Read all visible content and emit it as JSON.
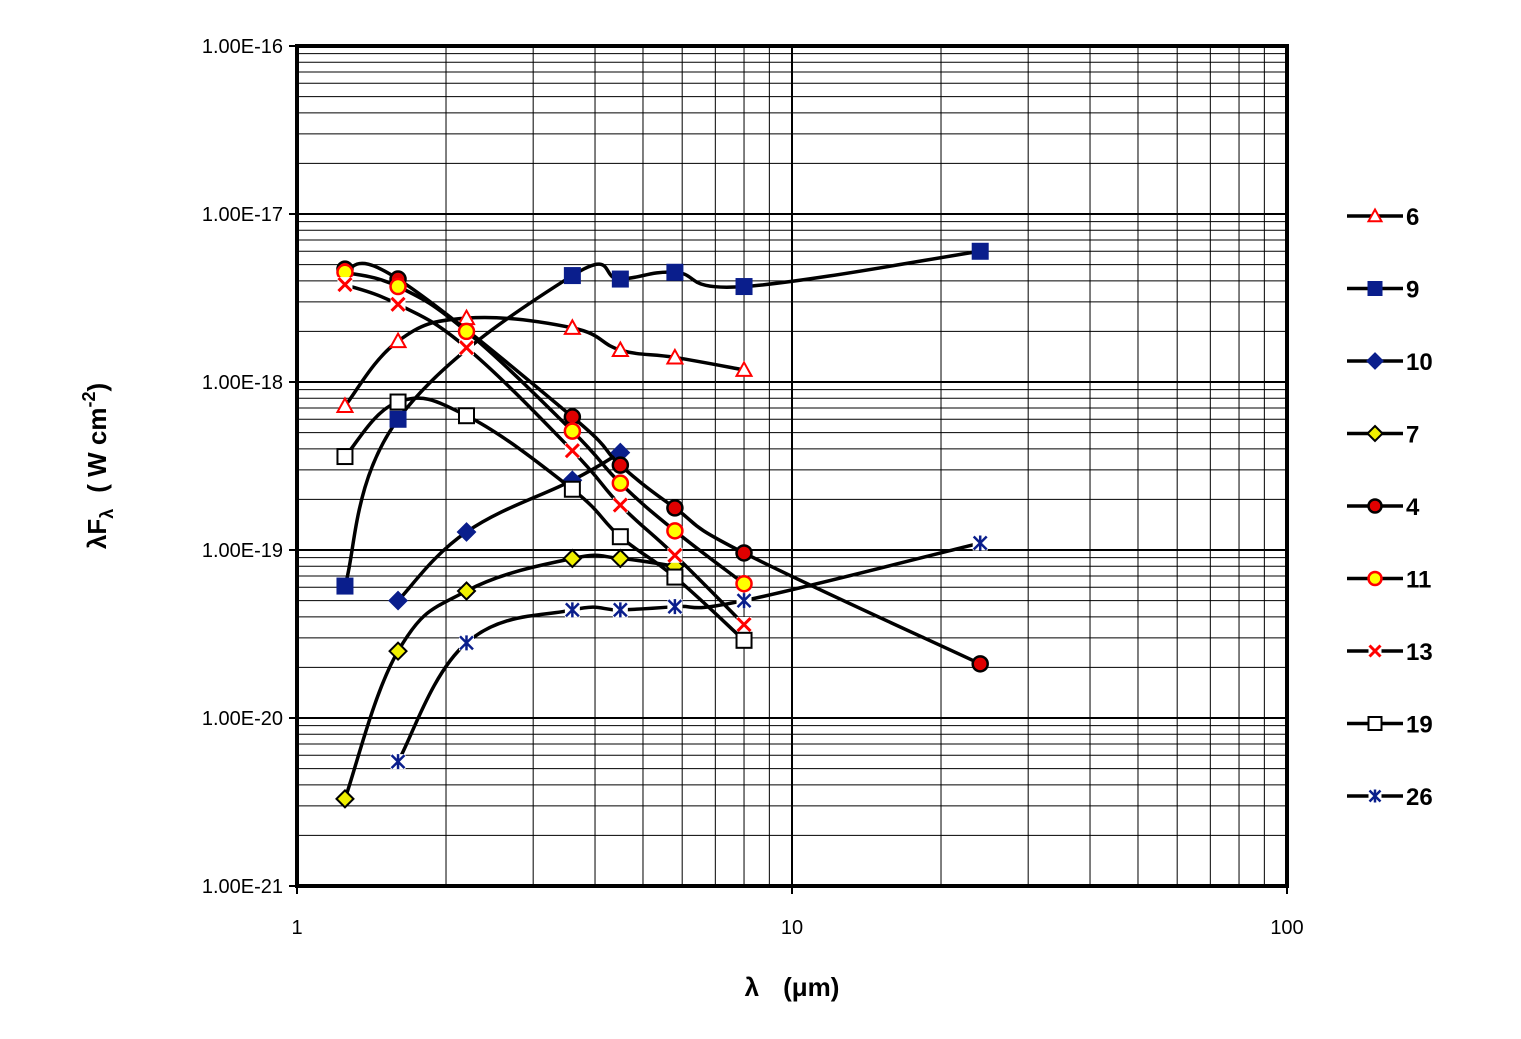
{
  "chart_data": {
    "type": "scatter",
    "x_scale": "log",
    "y_scale": "log",
    "xlim": [
      1,
      100
    ],
    "ylim": [
      1e-21,
      1e-16
    ],
    "grid": true,
    "legend_position": "right",
    "xlabel": {
      "main": "λ",
      "unit": "(μm)"
    },
    "ylabel": {
      "main": "λF",
      "sub": "λ",
      "unit_pre": "( W cm",
      "sup": "-2",
      "unit_post": ")"
    },
    "x_tick_labels": [
      {
        "value": 1,
        "label": "1"
      },
      {
        "value": 10,
        "label": "10"
      },
      {
        "value": 100,
        "label": "100"
      }
    ],
    "y_tick_labels": [
      {
        "value": 1e-16,
        "label": "1.00E-16"
      },
      {
        "value": 1e-17,
        "label": "1.00E-17"
      },
      {
        "value": 1e-18,
        "label": "1.00E-18"
      },
      {
        "value": 1e-19,
        "label": "1.00E-19"
      },
      {
        "value": 1e-20,
        "label": "1.00E-20"
      },
      {
        "value": 1e-21,
        "label": "1.00E-21"
      }
    ],
    "series": [
      {
        "name": "6",
        "marker": "triangle",
        "fill": "#ffffff",
        "stroke": "#ff0000",
        "x": [
          1.25,
          1.6,
          2.2,
          3.6,
          4.5,
          5.8,
          8.0
        ],
        "y": [
          7.2e-19,
          1.75e-18,
          2.4e-18,
          2.1e-18,
          1.55e-18,
          1.4e-18,
          1.18e-18
        ]
      },
      {
        "name": "9",
        "marker": "square",
        "fill": "#0a1e8c",
        "stroke": "#0a1e8c",
        "x": [
          1.25,
          1.6,
          3.6,
          4.5,
          5.8,
          8.0,
          24
        ],
        "y": [
          6.1e-20,
          6e-19,
          4.3e-18,
          4.1e-18,
          4.5e-18,
          3.7e-18,
          6e-18
        ]
      },
      {
        "name": "10",
        "marker": "diamond",
        "fill": "#0a1e8c",
        "stroke": "#0a1e8c",
        "x": [
          1.6,
          2.2,
          3.6,
          4.5
        ],
        "y": [
          5e-20,
          1.28e-19,
          2.6e-19,
          3.8e-19
        ]
      },
      {
        "name": "7",
        "marker": "diamond",
        "fill": "#f0f000",
        "stroke": "#000000",
        "x": [
          1.25,
          1.6,
          2.2,
          3.6,
          4.5,
          5.8
        ],
        "y": [
          3.3e-21,
          2.5e-20,
          5.7e-20,
          8.9e-20,
          8.9e-20,
          8e-20
        ]
      },
      {
        "name": "4",
        "marker": "circle",
        "fill": "#e00000",
        "stroke": "#000000",
        "x": [
          1.25,
          1.6,
          3.6,
          4.5,
          5.8,
          8.0,
          24
        ],
        "y": [
          4.7e-18,
          4.1e-18,
          6.2e-19,
          3.2e-19,
          1.78e-19,
          9.6e-20,
          2.1e-20
        ]
      },
      {
        "name": "11",
        "marker": "circle",
        "fill": "#ffff00",
        "stroke": "#ff0000",
        "x": [
          1.25,
          1.6,
          2.2,
          3.6,
          4.5,
          5.8,
          8.0
        ],
        "y": [
          4.5e-18,
          3.7e-18,
          2e-18,
          5.1e-19,
          2.5e-19,
          1.3e-19,
          6.3e-20
        ]
      },
      {
        "name": "13",
        "marker": "x",
        "fill": "#ffffff",
        "stroke": "#ff0000",
        "x": [
          1.25,
          1.6,
          2.2,
          3.6,
          4.5,
          5.8,
          8.0
        ],
        "y": [
          3.8e-18,
          2.9e-18,
          1.6e-18,
          3.9e-19,
          1.85e-19,
          9.3e-20,
          3.6e-20
        ]
      },
      {
        "name": "19",
        "marker": "square",
        "fill": "#ffffff",
        "stroke": "#000000",
        "x": [
          1.25,
          1.6,
          2.2,
          3.6,
          4.5,
          5.8,
          8.0
        ],
        "y": [
          3.6e-19,
          7.6e-19,
          6.3e-19,
          2.3e-19,
          1.2e-19,
          6.9e-20,
          2.9e-20
        ]
      },
      {
        "name": "26",
        "marker": "star",
        "fill": "#ffffff",
        "stroke": "#0a1e8c",
        "x": [
          1.6,
          2.2,
          3.6,
          4.5,
          5.8,
          8.0,
          24
        ],
        "y": [
          5.5e-21,
          2.8e-20,
          4.4e-20,
          4.4e-20,
          4.6e-20,
          5e-20,
          1.1e-19
        ]
      }
    ]
  }
}
